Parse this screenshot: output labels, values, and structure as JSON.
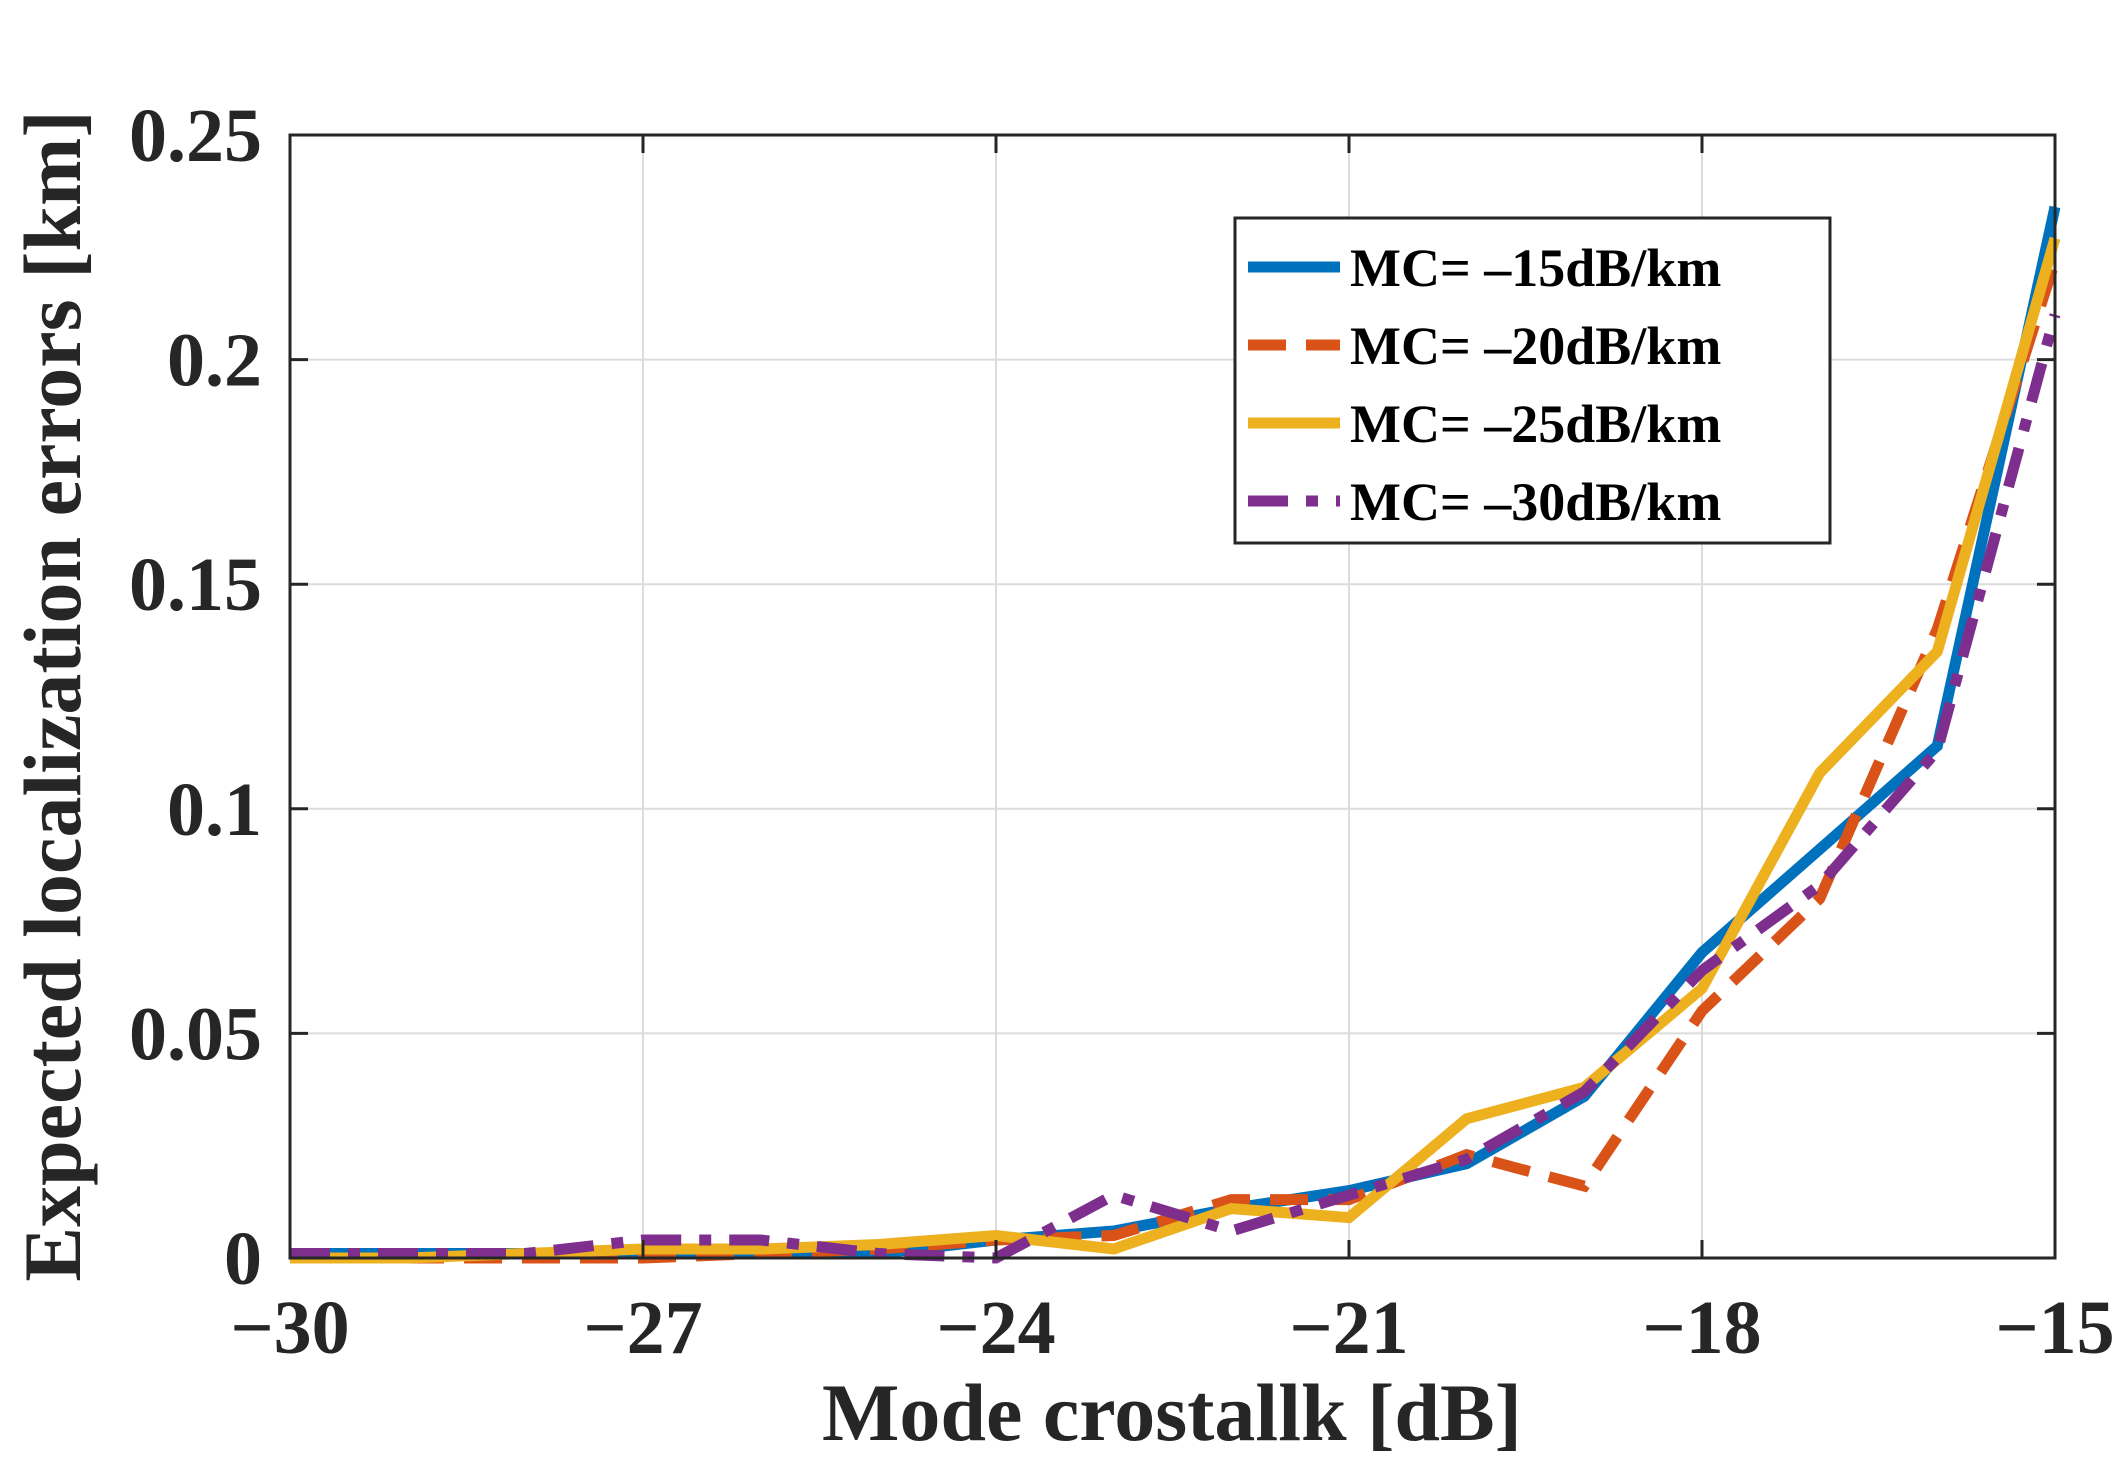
{
  "chart_data": {
    "type": "line",
    "title": "",
    "xlabel": "Mode crostallk [dB]",
    "ylabel": "Expected localization errors [km]",
    "xlim": [
      -30,
      -15
    ],
    "ylim": [
      0,
      0.25
    ],
    "grid": true,
    "legend_position": "top-right",
    "x_ticks": [
      -30,
      -27,
      -24,
      -21,
      -18,
      -15
    ],
    "x_tick_labels": [
      "−30",
      "−27",
      "−24",
      "−21",
      "−18",
      "−15"
    ],
    "y_ticks": [
      0,
      0.05,
      0.1,
      0.15,
      0.2,
      0.25
    ],
    "y_tick_labels": [
      "0",
      "0.05",
      "0.1",
      "0.15",
      "0.2",
      "0.25"
    ],
    "x": [
      -30,
      -29,
      -28,
      -27,
      -26,
      -25,
      -24,
      -23,
      -22,
      -21,
      -20,
      -19,
      -18,
      -17,
      -16,
      -15
    ],
    "series": [
      {
        "name": "MC= –15dB/km",
        "color": "#0072BD",
        "dash": "solid",
        "values": [
          0.001,
          0.001,
          0.001,
          0.001,
          0.001,
          0.001,
          0.004,
          0.006,
          0.011,
          0.015,
          0.021,
          0.036,
          0.068,
          0.091,
          0.114,
          0.234
        ]
      },
      {
        "name": "MC= –20dB/km",
        "color": "#D95319",
        "dash": "dashed",
        "values": [
          0.0,
          0.0,
          0.0,
          0.0,
          0.001,
          0.002,
          0.004,
          0.005,
          0.013,
          0.013,
          0.023,
          0.016,
          0.055,
          0.08,
          0.14,
          0.222
        ]
      },
      {
        "name": "MC= –25dB/km",
        "color": "#EDB120",
        "dash": "solid",
        "values": [
          0.0,
          0.0,
          0.001,
          0.002,
          0.002,
          0.003,
          0.005,
          0.002,
          0.011,
          0.009,
          0.031,
          0.038,
          0.06,
          0.108,
          0.135,
          0.227
        ]
      },
      {
        "name": "MC= –30dB/km",
        "color": "#7E2F8E",
        "dash": "dashdot",
        "values": [
          0.001,
          0.001,
          0.001,
          0.004,
          0.004,
          0.001,
          0.0,
          0.014,
          0.006,
          0.014,
          0.022,
          0.037,
          0.064,
          0.083,
          0.113,
          0.21
        ]
      }
    ]
  }
}
